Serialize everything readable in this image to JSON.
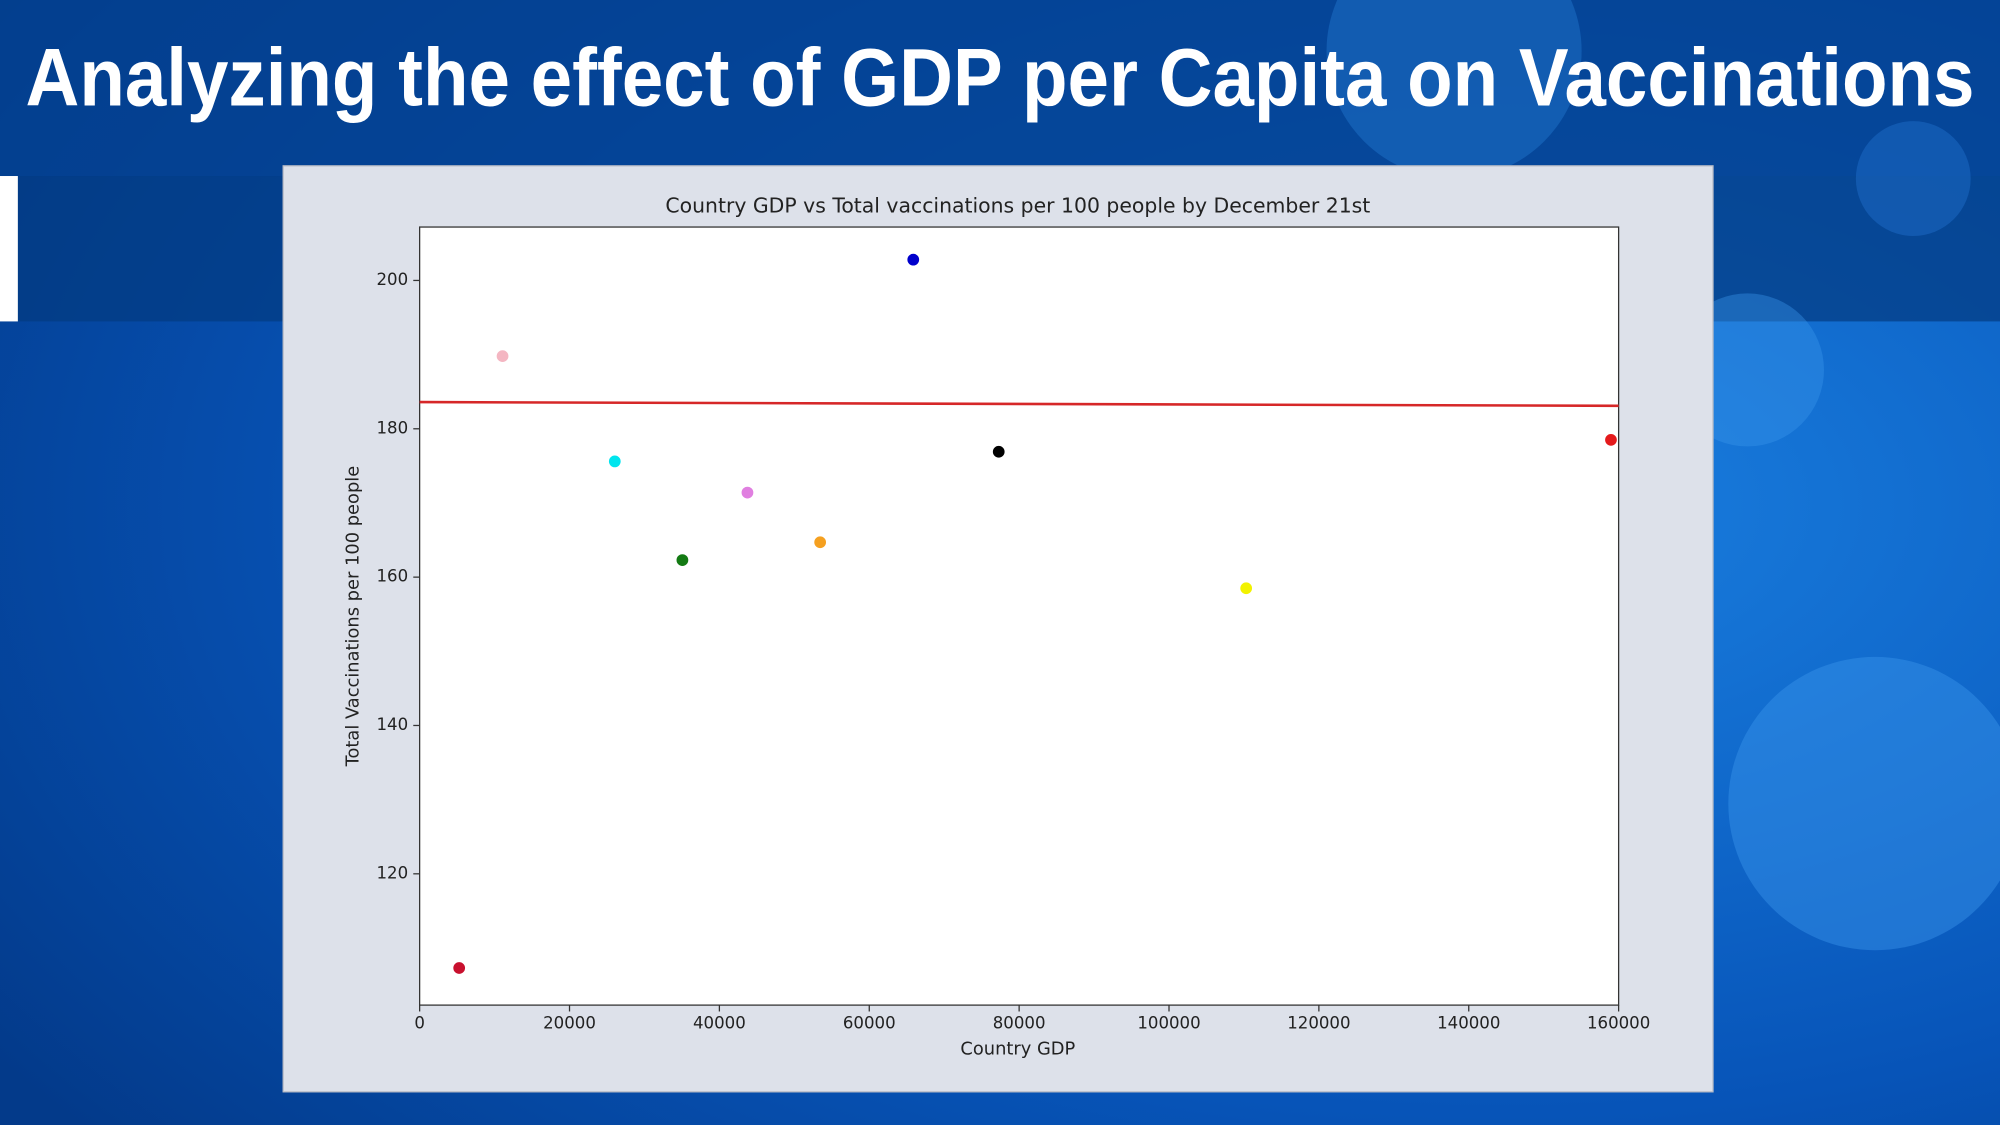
{
  "slide_title": "Analyzing the effect of GDP per Capita on Vaccinations",
  "chart_data": {
    "type": "scatter",
    "title": "Country GDP vs Total vaccinations per 100 people by December 21st",
    "x_label": "Country GDP",
    "y_label": "Total Vaccinations per 100 people",
    "xlim": [
      0,
      160000
    ],
    "ylim": [
      102.3,
      207.2
    ],
    "xticks": [
      0,
      20000,
      40000,
      60000,
      80000,
      100000,
      120000,
      140000,
      160000
    ],
    "yticks": [
      120,
      140,
      160,
      180,
      200
    ],
    "series": [
      {
        "x": [
          5277,
          11064,
          26043,
          35064,
          43745,
          53447,
          65872,
          77277,
          110298,
          158979
        ],
        "values": [
          107.3,
          189.8,
          175.6,
          162.3,
          171.4,
          164.7,
          202.8,
          176.9,
          158.5,
          178.5
        ],
        "colors": [
          "#c8102e",
          "#f4b6c2",
          "#00e5ee",
          "#137a13",
          "#e07fe0",
          "#f5a020",
          "#0000cc",
          "#000000",
          "#f2f200",
          "#e41a1c"
        ]
      }
    ],
    "trend_line": {
      "x": [
        0,
        160000
      ],
      "values": [
        183.6,
        183.1
      ],
      "color": "#d62728"
    }
  }
}
